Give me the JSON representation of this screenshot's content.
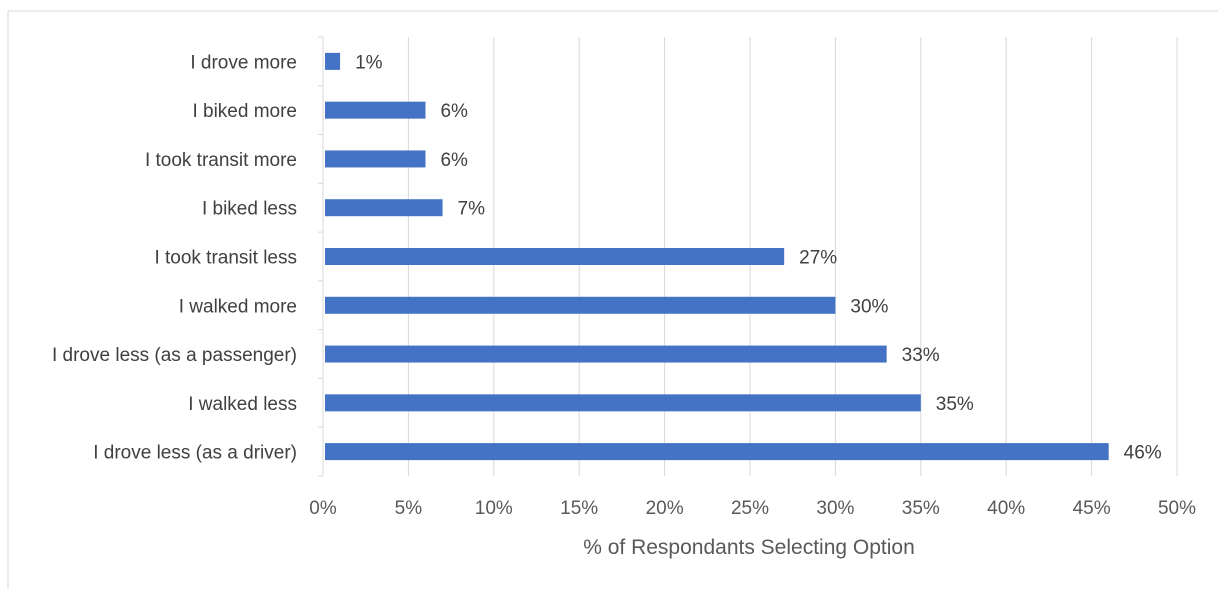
{
  "chart_data": {
    "type": "bar",
    "orientation": "horizontal",
    "title": "",
    "xlabel": "% of Respondants Selecting Option",
    "ylabel": "",
    "categories": [
      "I drove more",
      "I biked more",
      "I took transit more",
      "I biked less",
      "I took transit less",
      "I walked more",
      "I drove less (as a passenger)",
      "I walked less",
      "I drove less (as a driver)"
    ],
    "values": [
      1,
      6,
      6,
      7,
      27,
      30,
      33,
      35,
      46
    ],
    "data_labels": [
      "1%",
      "6%",
      "6%",
      "7%",
      "27%",
      "30%",
      "33%",
      "35%",
      "46%"
    ],
    "xlim": [
      0,
      50
    ],
    "x_ticks": [
      0,
      5,
      10,
      15,
      20,
      25,
      30,
      35,
      40,
      45,
      50
    ],
    "x_tick_labels": [
      "0%",
      "5%",
      "10%",
      "15%",
      "20%",
      "25%",
      "30%",
      "35%",
      "40%",
      "45%",
      "50%"
    ],
    "grid": "vertical",
    "legend": "none",
    "colors": {
      "bar": "#4472c4",
      "grid": "#d9d9d9",
      "text": "#404040",
      "axis_text": "#595959"
    }
  }
}
